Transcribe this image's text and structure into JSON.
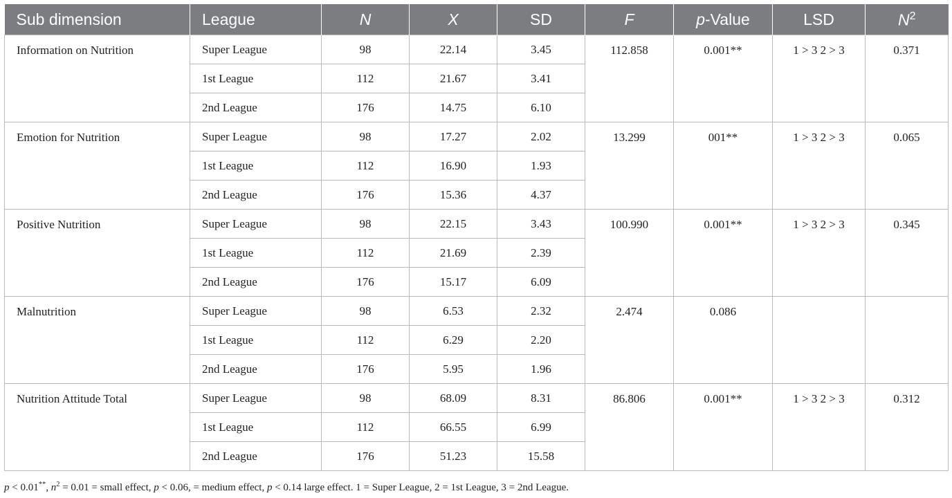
{
  "headers": {
    "sub_dimension": "Sub dimension",
    "league": "League",
    "n": "N",
    "x": "X",
    "sd": "SD",
    "f": "F",
    "p_italic": "p",
    "p_rest": "-Value",
    "lsd": "LSD",
    "n2_base": "N",
    "n2_sup": "2"
  },
  "groups": [
    {
      "name": "Information on Nutrition",
      "f": "112.858",
      "p": "0.001**",
      "lsd": "1 > 3 2 > 3",
      "n2": "0.371",
      "rows": [
        {
          "league": "Super League",
          "n": "98",
          "x": "22.14",
          "sd": "3.45"
        },
        {
          "league": "1st League",
          "n": "112",
          "x": "21.67",
          "sd": "3.41"
        },
        {
          "league": "2nd League",
          "n": "176",
          "x": "14.75",
          "sd": "6.10"
        }
      ]
    },
    {
      "name": "Emotion for Nutrition",
      "f": "13.299",
      "p": "001**",
      "lsd": "1 > 3 2 > 3",
      "n2": "0.065",
      "rows": [
        {
          "league": "Super League",
          "n": "98",
          "x": "17.27",
          "sd": "2.02"
        },
        {
          "league": "1st League",
          "n": "112",
          "x": "16.90",
          "sd": "1.93"
        },
        {
          "league": "2nd League",
          "n": "176",
          "x": "15.36",
          "sd": "4.37"
        }
      ]
    },
    {
      "name": "Positive Nutrition",
      "f": "100.990",
      "p": "0.001**",
      "lsd": "1 > 3 2 > 3",
      "n2": "0.345",
      "rows": [
        {
          "league": "Super League",
          "n": "98",
          "x": "22.15",
          "sd": "3.43"
        },
        {
          "league": "1st League",
          "n": "112",
          "x": "21.69",
          "sd": "2.39"
        },
        {
          "league": "2nd League",
          "n": "176",
          "x": "15.17",
          "sd": "6.09"
        }
      ]
    },
    {
      "name": "Malnutrition",
      "f": "2.474",
      "p": "0.086",
      "lsd": "",
      "n2": "",
      "rows": [
        {
          "league": "Super League",
          "n": "98",
          "x": "6.53",
          "sd": "2.32"
        },
        {
          "league": "1st League",
          "n": "112",
          "x": "6.29",
          "sd": "2.20"
        },
        {
          "league": "2nd League",
          "n": "176",
          "x": "5.95",
          "sd": "1.96"
        }
      ]
    },
    {
      "name": "Nutrition Attitude Total",
      "f": "86.806",
      "p": "0.001**",
      "lsd": "1 > 3 2 > 3",
      "n2": "0.312",
      "rows": [
        {
          "league": "Super League",
          "n": "98",
          "x": "68.09",
          "sd": "8.31"
        },
        {
          "league": "1st League",
          "n": "112",
          "x": "66.55",
          "sd": "6.99"
        },
        {
          "league": "2nd League",
          "n": "176",
          "x": "51.23",
          "sd": "15.58"
        }
      ]
    }
  ],
  "footnote": {
    "p1": "p",
    "t1": " < 0.01",
    "s1": "**",
    "t2": ", ",
    "n1": "n",
    "s2": "2",
    "t3": " = 0.01 = small effect, ",
    "p2": "p",
    "t4": " < 0.06, = medium effect, ",
    "p3": "p",
    "t5": " < 0.14 large effect. 1 = Super League, 2 = 1st League, 3 = 2nd League."
  }
}
